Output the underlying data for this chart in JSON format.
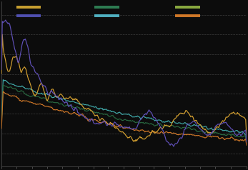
{
  "bg_color": "#0c0c0c",
  "grid_color": "#4a4a4a",
  "legend_row1_colors": [
    "#c8a030",
    "#2e7d52",
    "#8aaa40"
  ],
  "legend_row2_colors": [
    "#5050b0",
    "#50b0c0",
    "#d07828"
  ],
  "line_colors": {
    "gold": "#d4a030",
    "purple": "#6050b8",
    "teal": "#40a8a8",
    "green": "#286840",
    "orange": "#d07828"
  },
  "figsize": [
    3.47,
    2.38
  ],
  "dpi": 100
}
